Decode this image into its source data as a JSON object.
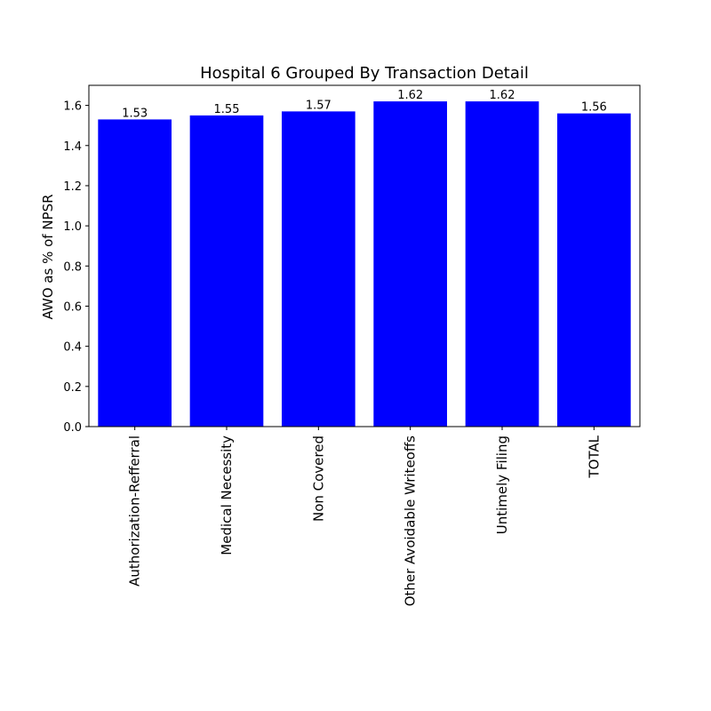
{
  "chart_data": {
    "type": "bar",
    "title": "Hospital 6 Grouped By Transaction Detail",
    "xlabel": "",
    "ylabel": "AWO as % of NPSR",
    "categories": [
      "Authorization-Refferral",
      "Medical Necessity",
      "Non Covered",
      "Other Avoidable Writeoffs",
      "Untimely Filing",
      "TOTAL"
    ],
    "values": [
      1.53,
      1.55,
      1.57,
      1.62,
      1.62,
      1.56
    ],
    "data_labels": [
      "1.53",
      "1.55",
      "1.57",
      "1.62",
      "1.62",
      "1.56"
    ],
    "ylim": [
      0,
      1.7
    ],
    "yticks": [
      0.0,
      0.2,
      0.4,
      0.6,
      0.8,
      1.0,
      1.2,
      1.4,
      1.6
    ],
    "ytick_labels": [
      "0.0",
      "0.2",
      "0.4",
      "0.6",
      "0.8",
      "1.0",
      "1.2",
      "1.4",
      "1.6"
    ],
    "grid": false,
    "legend": "none",
    "bar_color": "#0000ff"
  }
}
